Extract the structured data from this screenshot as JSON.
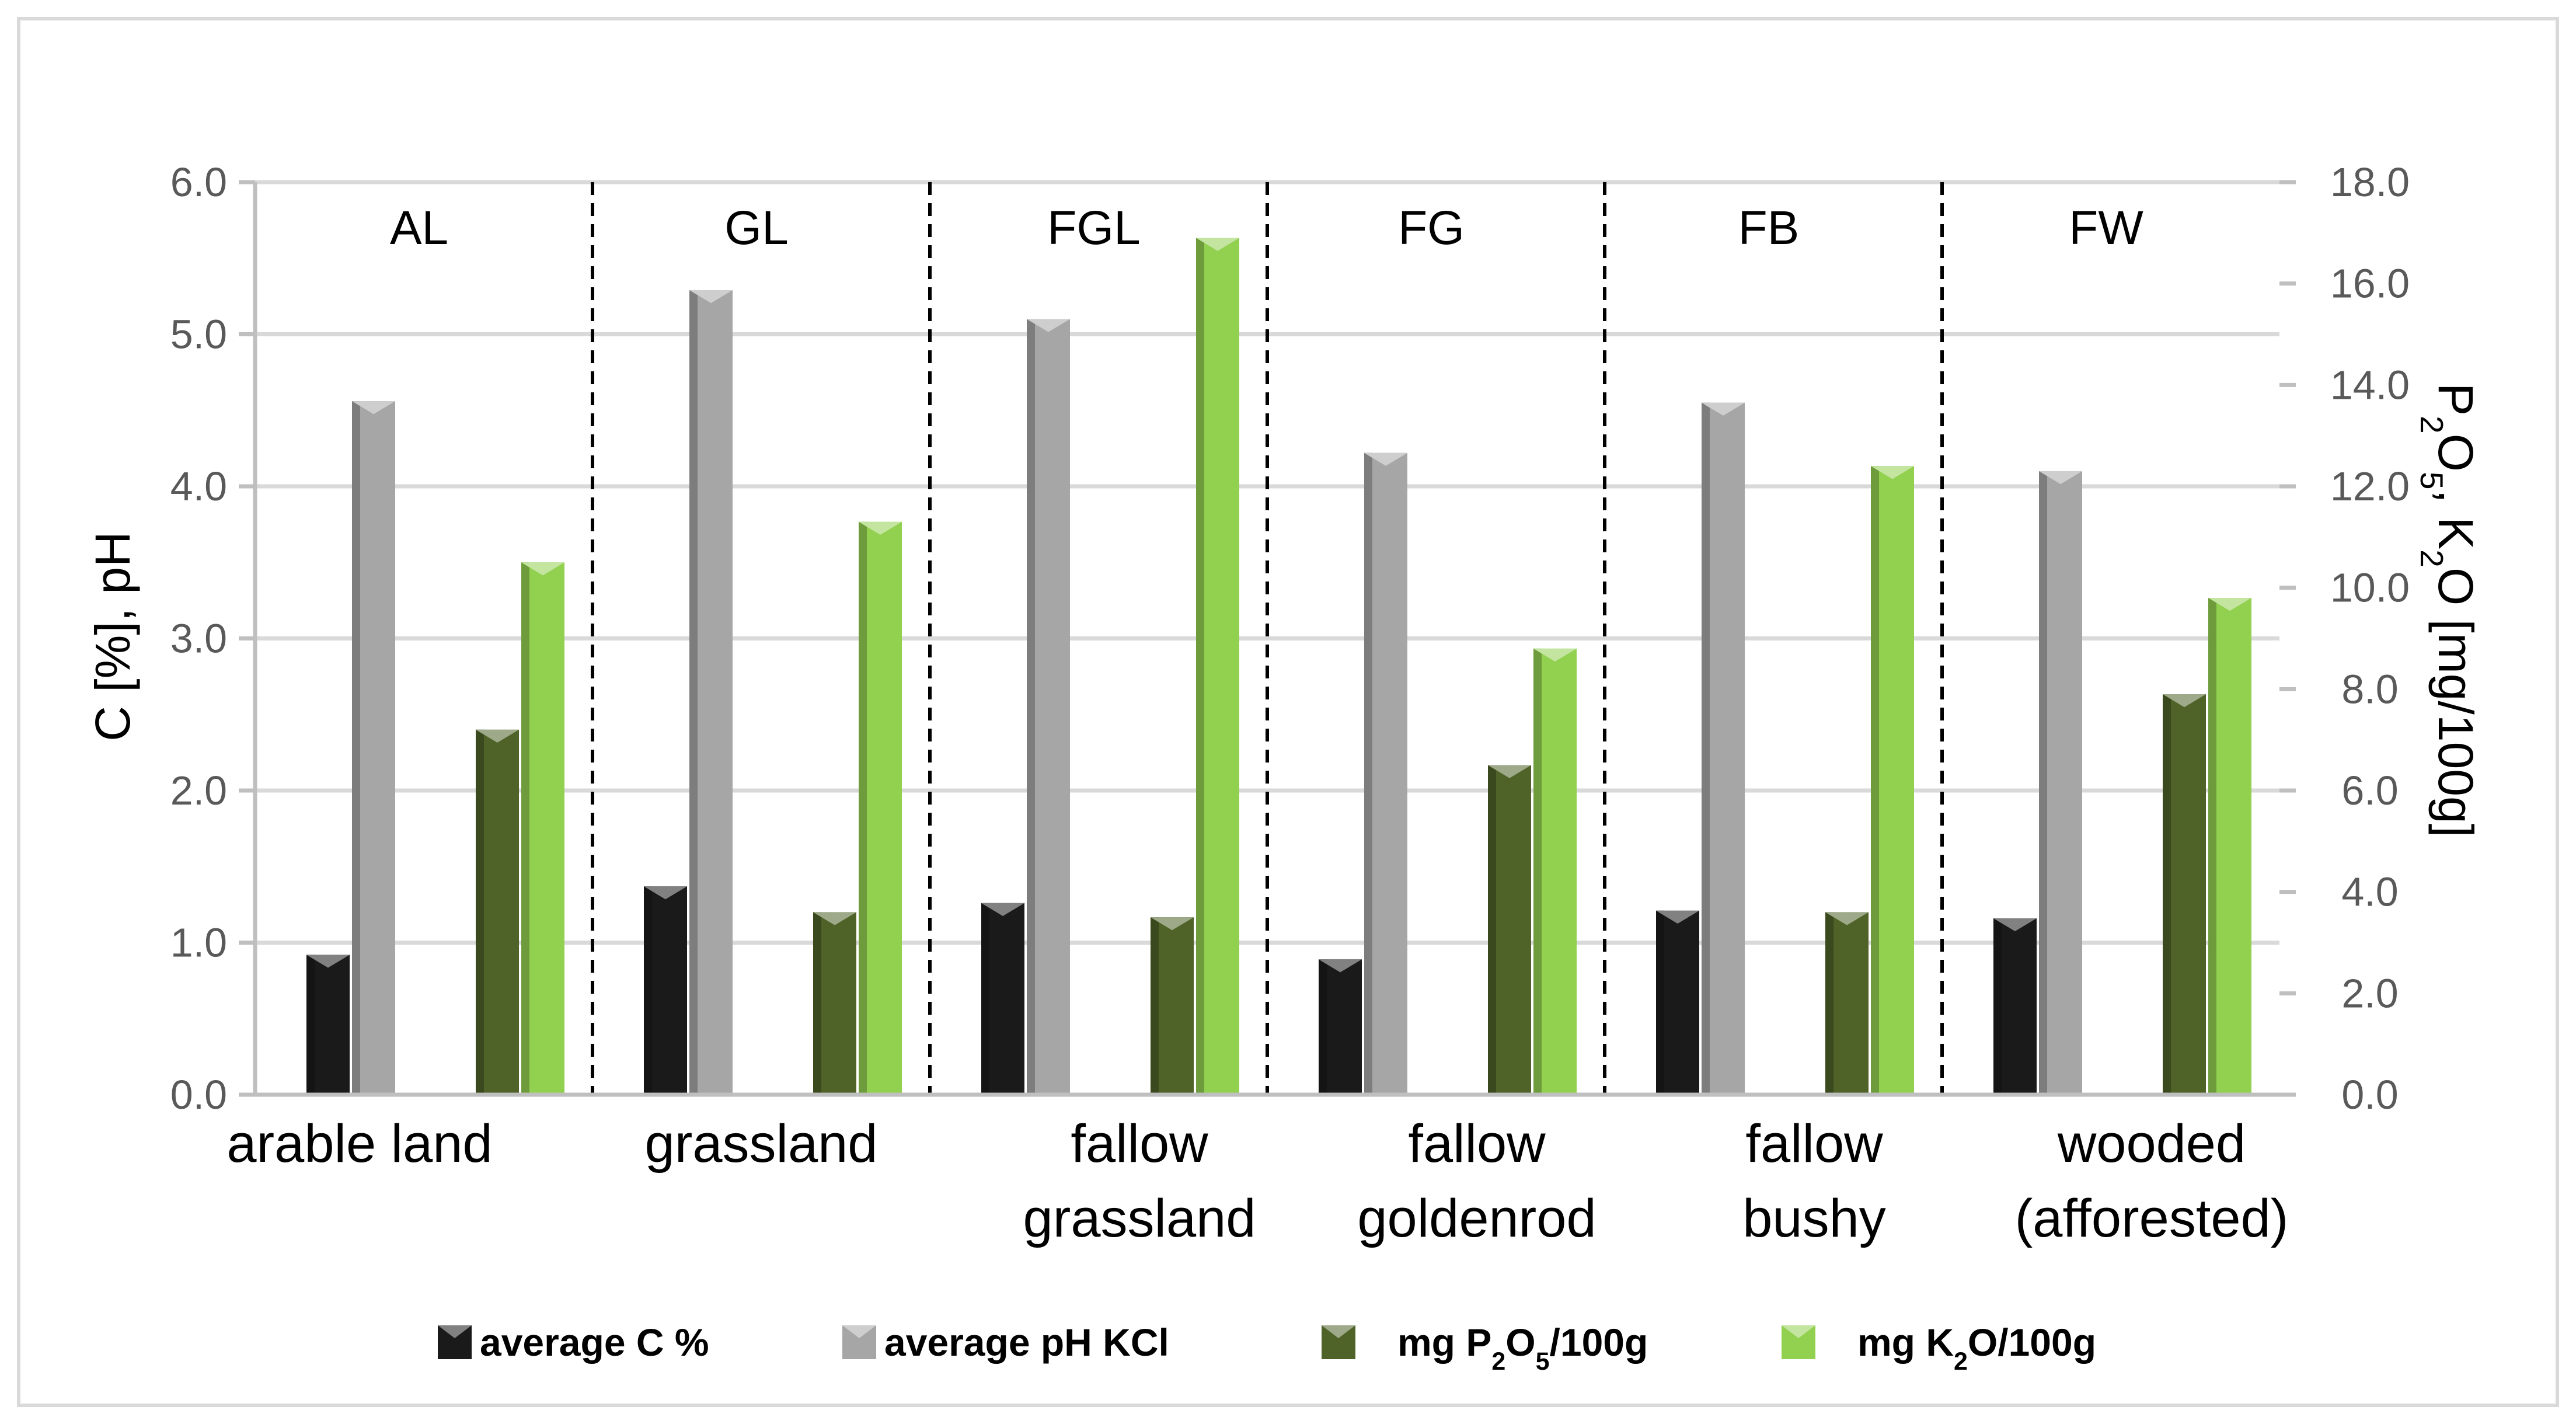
{
  "chart_data": {
    "type": "bar",
    "categories": [
      "arable land",
      "grassland",
      "fallow grassland",
      "fallow goldenrod",
      "fallow bushy",
      "wooded (afforested)"
    ],
    "category_lines": [
      [
        "arable land"
      ],
      [
        "grassland"
      ],
      [
        "fallow",
        "grassland"
      ],
      [
        "fallow",
        "goldenrod"
      ],
      [
        "fallow",
        "bushy"
      ],
      [
        "wooded",
        "(afforested)"
      ]
    ],
    "abbreviations": [
      "AL",
      "GL",
      "FGL",
      "FG",
      "FB",
      "FW"
    ],
    "series": [
      {
        "name": "average  C %",
        "axis": "left",
        "color": "#1a1a1a",
        "values": [
          0.92,
          1.37,
          1.26,
          0.89,
          1.21,
          1.16
        ]
      },
      {
        "name": "average  pH KCl",
        "axis": "left",
        "color": "#a6a6a6",
        "values": [
          4.56,
          5.29,
          5.1,
          4.22,
          4.55,
          4.1
        ]
      },
      {
        "name": "mg P₂O₅/100g",
        "axis": "right",
        "color": "#4f6228",
        "values": [
          7.2,
          3.6,
          3.5,
          6.5,
          3.6,
          7.9
        ]
      },
      {
        "name": "mg K₂O/100g",
        "axis": "right",
        "color": "#92d050",
        "values": [
          10.5,
          11.3,
          16.9,
          8.8,
          12.4,
          9.8
        ]
      }
    ],
    "y_left": {
      "label": "C [%],  pH",
      "min": 0,
      "max": 6,
      "step": 1,
      "ticks": [
        "0.0",
        "1.0",
        "2.0",
        "3.0",
        "4.0",
        "5.0",
        "6.0"
      ]
    },
    "y_right": {
      "label": "P₂O₅,  K₂O [mg/100g]",
      "min": 0,
      "max": 18,
      "step": 2,
      "ticks": [
        "0.0",
        "2.0",
        "4.0",
        "6.0",
        "8.0",
        "10.0",
        "12.0",
        "14.0",
        "16.0",
        "18.0"
      ]
    },
    "legend": [
      "average  C %",
      "average  pH KCl",
      "mg P₂O₅/100g",
      "mg K₂O/100g"
    ],
    "legend_position": "bottom",
    "grid": true
  }
}
